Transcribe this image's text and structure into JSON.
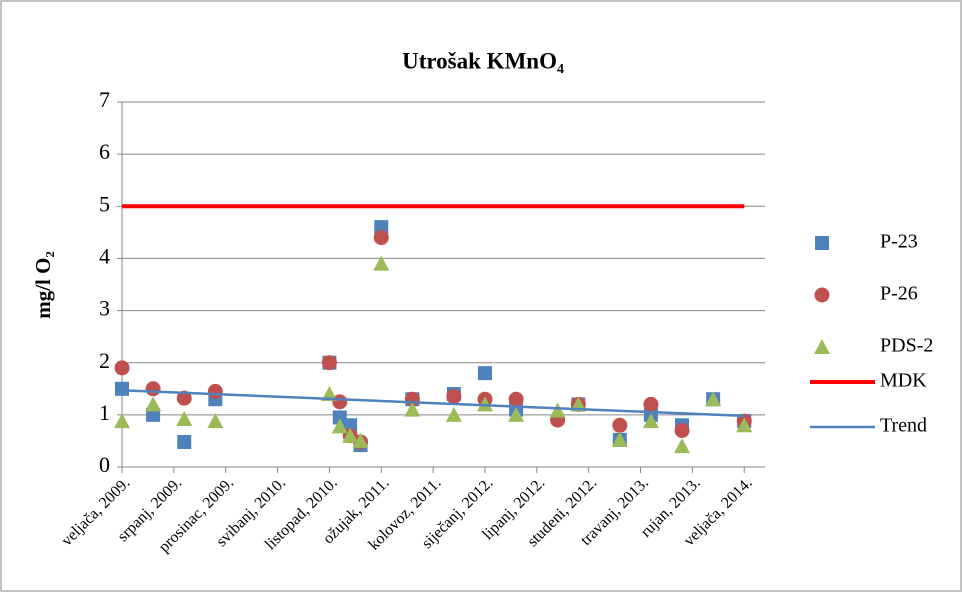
{
  "chart_data": {
    "type": "scatter",
    "title": "Utrošak KMnO₄",
    "y_label": "mg/l O₂",
    "xlim": [
      "2009-02",
      "2014-04"
    ],
    "xticks": [
      {
        "value": "2009-02",
        "label": "veljača, 2009."
      },
      {
        "value": "2009-07",
        "label": "srpanj, 2009."
      },
      {
        "value": "2009-12",
        "label": "prosinac, 2009."
      },
      {
        "value": "2010-05",
        "label": "svibanj, 2010."
      },
      {
        "value": "2010-10",
        "label": "listopad, 2010."
      },
      {
        "value": "2011-03",
        "label": "ožujak, 2011."
      },
      {
        "value": "2011-08",
        "label": "kolovoz, 2011."
      },
      {
        "value": "2012-01",
        "label": "siječanj, 2012."
      },
      {
        "value": "2012-06",
        "label": "lipanj, 2012."
      },
      {
        "value": "2012-11",
        "label": "studeni, 2012."
      },
      {
        "value": "2013-04",
        "label": "travanj, 2013."
      },
      {
        "value": "2013-09",
        "label": "rujan, 2013."
      },
      {
        "value": "2014-02",
        "label": "veljača, 2014."
      }
    ],
    "ylim": [
      0,
      7
    ],
    "yticks": [
      0,
      1,
      2,
      3,
      4,
      5,
      6,
      7
    ],
    "grid": true,
    "legend": "right",
    "series": [
      {
        "name": "P-23",
        "kind": "square",
        "color": "#4f81bd",
        "x": [
          "2009-02",
          "2009-05",
          "2009-08",
          "2009-11",
          "2010-10",
          "2010-11",
          "2010-12",
          "2011-01",
          "2011-03",
          "2011-06",
          "2011-10",
          "2012-01",
          "2012-04",
          "2012-10",
          "2013-02",
          "2013-05",
          "2013-08",
          "2013-11",
          "2014-02"
        ],
        "values": [
          1.5,
          1.0,
          0.48,
          1.3,
          2.0,
          0.95,
          0.8,
          0.42,
          4.6,
          1.3,
          1.4,
          1.8,
          1.1,
          1.2,
          0.52,
          1.0,
          0.8,
          1.3,
          0.88
        ]
      },
      {
        "name": "P-26",
        "kind": "circle",
        "color": "#c0504d",
        "x": [
          "2009-02",
          "2009-05",
          "2009-08",
          "2009-11",
          "2010-10",
          "2010-11",
          "2010-12",
          "2011-01",
          "2011-03",
          "2011-06",
          "2011-10",
          "2012-01",
          "2012-04",
          "2012-08",
          "2012-10",
          "2013-02",
          "2013-05",
          "2013-08",
          "2014-02"
        ],
        "values": [
          1.9,
          1.5,
          1.32,
          1.45,
          2.0,
          1.25,
          0.6,
          0.48,
          4.4,
          1.3,
          1.35,
          1.3,
          1.3,
          0.9,
          1.2,
          0.8,
          1.2,
          0.7,
          0.88
        ]
      },
      {
        "name": "PDS-2",
        "kind": "triangle",
        "color": "#9bbb59",
        "x": [
          "2009-02",
          "2009-05",
          "2009-08",
          "2009-11",
          "2010-10",
          "2010-11",
          "2010-12",
          "2011-01",
          "2011-03",
          "2011-06",
          "2011-10",
          "2012-01",
          "2012-04",
          "2012-08",
          "2012-10",
          "2013-02",
          "2013-05",
          "2013-08",
          "2013-11",
          "2014-02"
        ],
        "values": [
          0.88,
          1.2,
          0.92,
          0.88,
          1.4,
          0.78,
          0.6,
          0.5,
          3.9,
          1.1,
          1.0,
          1.2,
          1.0,
          1.08,
          1.2,
          0.52,
          0.88,
          0.4,
          1.3,
          0.8
        ]
      },
      {
        "name": "MDK",
        "kind": "line",
        "color": "#ff0000",
        "x": [
          "2009-02",
          "2014-02"
        ],
        "values": [
          5,
          5
        ]
      },
      {
        "name": "Trend",
        "kind": "line",
        "color": "#4f81bd",
        "x": [
          "2009-02",
          "2014-02"
        ],
        "values": [
          1.47,
          0.98
        ]
      }
    ]
  }
}
